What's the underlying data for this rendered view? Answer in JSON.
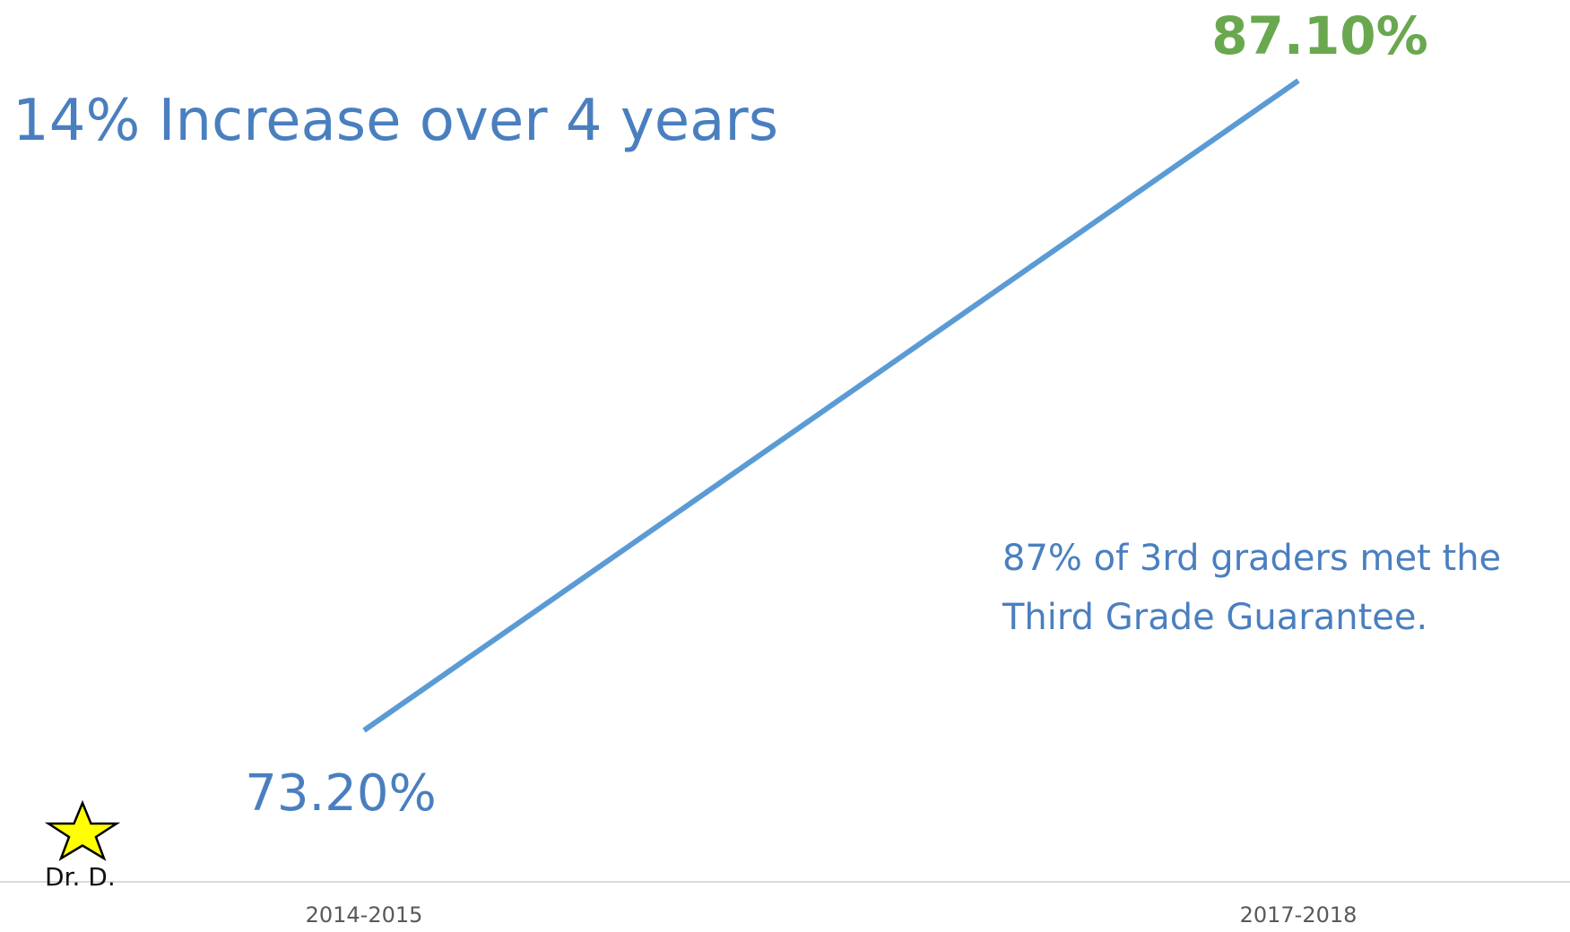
{
  "chart_data": {
    "type": "line",
    "categories": [
      "2014-2015",
      "2017-2018"
    ],
    "series": [
      {
        "values": [
          73.2,
          87.1
        ],
        "data_labels": [
          "73.20%",
          "87.10%"
        ],
        "color": "#5b9bd5"
      }
    ],
    "data_label_colors": [
      "#4a7fbf",
      "#6aa84f"
    ],
    "title": "",
    "xlabel": "",
    "ylabel": "",
    "grid": false,
    "legend": "none",
    "axis_color": "#d9d9d9",
    "tick_label_color": "#595959"
  },
  "headline": {
    "text": "14% Increase over 4 years",
    "color": "#4a7fbf"
  },
  "note": {
    "line1": "87% of 3rd graders met the",
    "line2": "Third Grade Guarantee.",
    "color": "#4a7fbf"
  },
  "signature": {
    "text": "Dr. D.",
    "icon": "star-icon",
    "icon_color": "#ffff00"
  }
}
